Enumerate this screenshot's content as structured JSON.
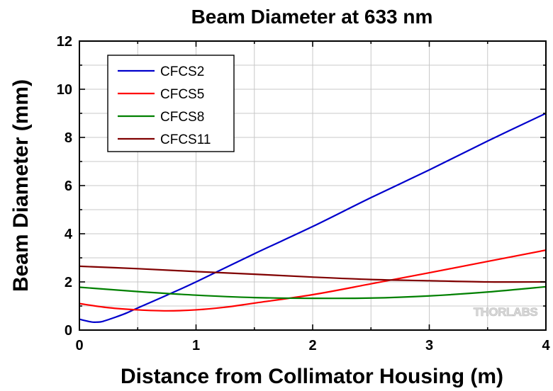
{
  "chart_data": {
    "type": "line",
    "title": "Beam Diameter at 633 nm",
    "xlabel": "Distance from Collimator Housing (m)",
    "ylabel": "Beam Diameter (mm)",
    "xlim": [
      0,
      4
    ],
    "ylim": [
      0,
      12
    ],
    "xticks": [
      "0",
      "1",
      "2",
      "3",
      "4"
    ],
    "yticks": [
      "0",
      "2",
      "4",
      "6",
      "8",
      "10",
      "12"
    ],
    "grid": true,
    "legend_position": "top-left",
    "watermark": "THORLABS",
    "series": [
      {
        "name": "CFCS2",
        "color": "#0000cc",
        "x": [
          0,
          0.1,
          0.15,
          0.2,
          0.3,
          0.4,
          0.5,
          0.75,
          1,
          1.5,
          2,
          2.5,
          3,
          3.5,
          4
        ],
        "y": [
          0.45,
          0.34,
          0.33,
          0.36,
          0.52,
          0.7,
          0.92,
          1.45,
          2.0,
          3.17,
          4.3,
          5.5,
          6.65,
          7.85,
          9.0
        ]
      },
      {
        "name": "CFCS5",
        "color": "#ff0000",
        "x": [
          0,
          0.25,
          0.5,
          0.75,
          1,
          1.25,
          1.5,
          2,
          2.5,
          3,
          3.5,
          4
        ],
        "y": [
          1.1,
          0.93,
          0.84,
          0.8,
          0.84,
          0.95,
          1.12,
          1.47,
          1.92,
          2.38,
          2.85,
          3.32
        ]
      },
      {
        "name": "CFCS8",
        "color": "#008000",
        "x": [
          0,
          0.5,
          1,
          1.5,
          2,
          2.5,
          3,
          3.5,
          4
        ],
        "y": [
          1.78,
          1.6,
          1.45,
          1.35,
          1.32,
          1.33,
          1.42,
          1.58,
          1.8
        ]
      },
      {
        "name": "CFCS11",
        "color": "#800000",
        "x": [
          0,
          0.5,
          1,
          1.5,
          2,
          2.5,
          3,
          3.5,
          4
        ],
        "y": [
          2.65,
          2.55,
          2.43,
          2.32,
          2.2,
          2.1,
          2.05,
          2.0,
          2.0
        ]
      }
    ]
  }
}
